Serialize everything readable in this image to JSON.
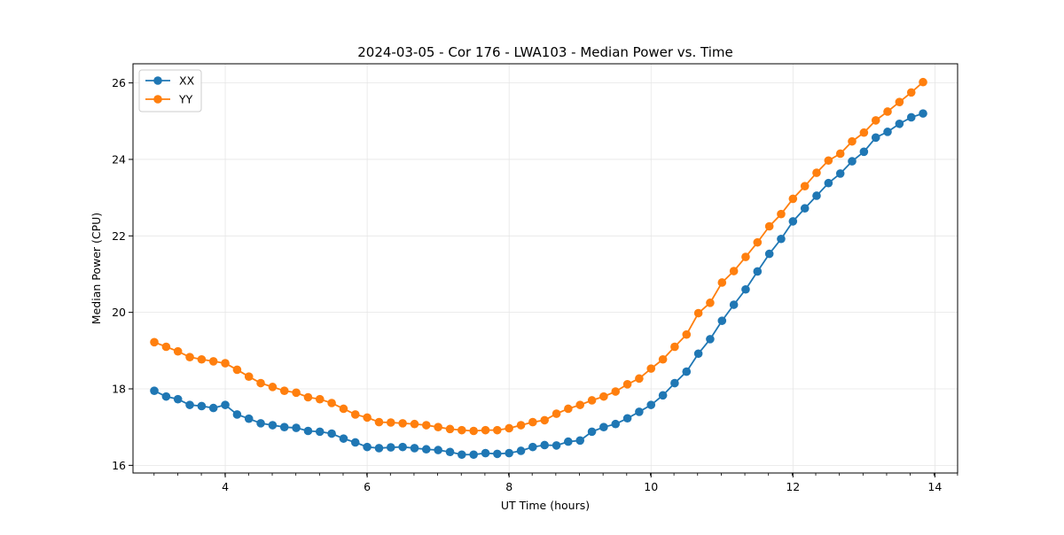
{
  "chart_data": {
    "type": "line",
    "title": "2024-03-05 - Cor 176 - LWA103 - Median Power vs. Time",
    "xlabel": "UT Time (hours)",
    "ylabel": "Median Power (CPU)",
    "xlim": [
      2.7,
      14.32
    ],
    "ylim": [
      15.8,
      26.5
    ],
    "xticks": [
      4,
      6,
      8,
      10,
      12,
      14
    ],
    "xtick_labels": [
      "4",
      "6",
      "8",
      "10",
      "12",
      "14"
    ],
    "xminor_step": 0.333,
    "yticks": [
      16,
      18,
      20,
      22,
      24,
      26
    ],
    "ytick_labels": [
      "16",
      "18",
      "20",
      "22",
      "24",
      "26"
    ],
    "grid": true,
    "legend_position": "top-left",
    "colors": {
      "XX": "#1f77b4",
      "YY": "#ff7f0e",
      "grid": "#e6e6e6",
      "axis": "#000000"
    },
    "x": [
      3.0,
      3.167,
      3.333,
      3.5,
      3.667,
      3.833,
      4.0,
      4.167,
      4.333,
      4.5,
      4.667,
      4.833,
      5.0,
      5.167,
      5.333,
      5.5,
      5.667,
      5.833,
      6.0,
      6.167,
      6.333,
      6.5,
      6.667,
      6.833,
      7.0,
      7.167,
      7.333,
      7.5,
      7.667,
      7.833,
      8.0,
      8.167,
      8.333,
      8.5,
      8.667,
      8.833,
      9.0,
      9.167,
      9.333,
      9.5,
      9.667,
      9.833,
      10.0,
      10.167,
      10.333,
      10.5,
      10.667,
      10.833,
      11.0,
      11.167,
      11.333,
      11.5,
      11.667,
      11.833,
      12.0,
      12.167,
      12.333,
      12.5,
      12.667,
      12.833,
      13.0,
      13.167,
      13.333,
      13.5,
      13.667,
      13.833
    ],
    "series": [
      {
        "name": "XX",
        "values": [
          17.95,
          17.8,
          17.73,
          17.58,
          17.55,
          17.5,
          17.58,
          17.33,
          17.22,
          17.1,
          17.05,
          17.0,
          16.98,
          16.9,
          16.88,
          16.83,
          16.7,
          16.6,
          16.48,
          16.45,
          16.47,
          16.48,
          16.45,
          16.42,
          16.4,
          16.35,
          16.28,
          16.28,
          16.32,
          16.3,
          16.32,
          16.38,
          16.48,
          16.53,
          16.52,
          16.62,
          16.65,
          16.88,
          17.0,
          17.08,
          17.23,
          17.4,
          17.58,
          17.83,
          18.15,
          18.45,
          18.92,
          19.3,
          19.78,
          20.2,
          20.6,
          21.07,
          21.53,
          21.92,
          22.38,
          22.72,
          23.05,
          23.38,
          23.63,
          23.95,
          24.2,
          24.57,
          24.72,
          24.93,
          25.1,
          25.2
        ]
      },
      {
        "name": "YY",
        "values": [
          19.22,
          19.1,
          18.98,
          18.83,
          18.77,
          18.72,
          18.67,
          18.5,
          18.32,
          18.15,
          18.05,
          17.95,
          17.9,
          17.78,
          17.73,
          17.63,
          17.48,
          17.33,
          17.25,
          17.13,
          17.12,
          17.1,
          17.08,
          17.05,
          17.0,
          16.95,
          16.92,
          16.9,
          16.92,
          16.92,
          16.97,
          17.05,
          17.13,
          17.18,
          17.35,
          17.48,
          17.58,
          17.7,
          17.8,
          17.93,
          18.12,
          18.27,
          18.53,
          18.77,
          19.1,
          19.42,
          19.98,
          20.25,
          20.78,
          21.08,
          21.45,
          21.83,
          22.25,
          22.57,
          22.97,
          23.3,
          23.65,
          23.97,
          24.15,
          24.47,
          24.7,
          25.02,
          25.25,
          25.5,
          25.75,
          26.02
        ]
      }
    ]
  }
}
